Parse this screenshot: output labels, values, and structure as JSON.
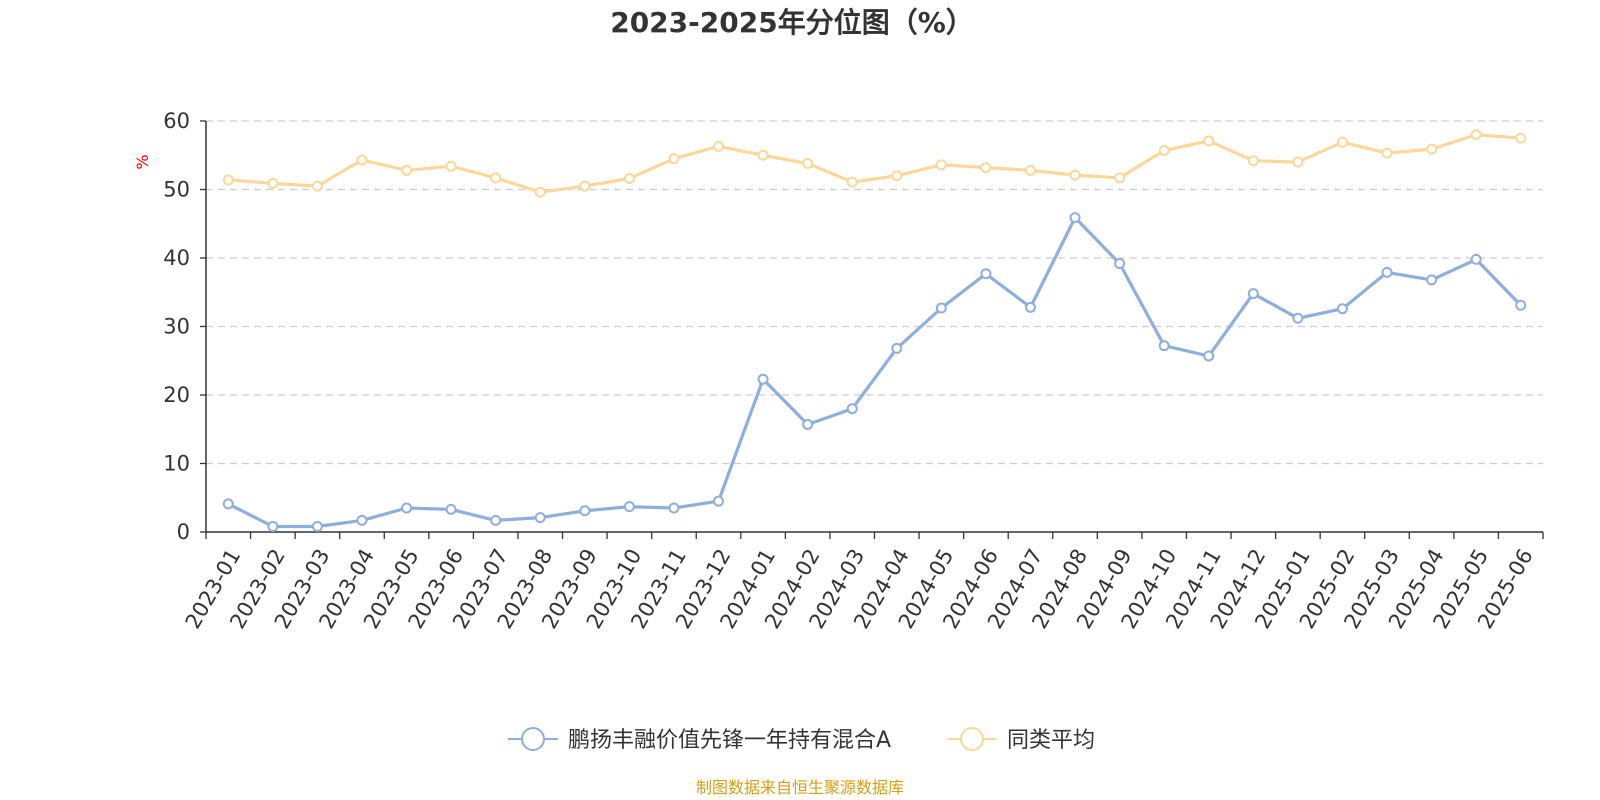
{
  "chart_data": {
    "type": "line",
    "title": "2023-2025年分位图（%）",
    "ylabel": "%",
    "ylim": [
      0,
      60
    ],
    "yticks": [
      0,
      10,
      20,
      30,
      40,
      50,
      60
    ],
    "grid": true,
    "legend_position": "bottom",
    "x": [
      "2023-01",
      "2023-02",
      "2023-03",
      "2023-04",
      "2023-05",
      "2023-06",
      "2023-07",
      "2023-08",
      "2023-09",
      "2023-10",
      "2023-11",
      "2023-12",
      "2024-01",
      "2024-02",
      "2024-03",
      "2024-04",
      "2024-05",
      "2024-06",
      "2024-07",
      "2024-08",
      "2024-09",
      "2024-10",
      "2024-11",
      "2024-12",
      "2025-01",
      "2025-02",
      "2025-03",
      "2025-04",
      "2025-05",
      "2025-06"
    ],
    "series": [
      {
        "name": "鹏扬丰融价值先锋一年持有混合A",
        "color": "#8eaedc",
        "values": [
          4.1,
          0.8,
          0.8,
          1.7,
          3.5,
          3.3,
          1.7,
          2.1,
          3.1,
          3.7,
          3.5,
          4.5,
          22.3,
          15.7,
          18.0,
          26.8,
          32.7,
          37.7,
          32.8,
          45.9,
          39.2,
          27.2,
          25.7,
          34.8,
          31.2,
          32.6,
          37.9,
          36.8,
          39.8,
          33.1
        ]
      },
      {
        "name": "同类平均",
        "color": "#fad89b",
        "values": [
          51.4,
          50.9,
          50.5,
          54.3,
          52.8,
          53.4,
          51.7,
          49.6,
          50.5,
          51.6,
          54.5,
          56.3,
          55.0,
          53.8,
          51.1,
          52.0,
          53.6,
          53.2,
          52.8,
          52.1,
          51.7,
          55.7,
          57.1,
          54.2,
          54.0,
          56.9,
          55.3,
          55.9,
          58.0,
          57.5
        ]
      }
    ],
    "axis_color": "#333333",
    "grid_color": "#cccccc",
    "unit_color": "#ff0000"
  },
  "source": {
    "text": "制图数据来自恒生聚源数据库",
    "color": "#d4a017"
  }
}
